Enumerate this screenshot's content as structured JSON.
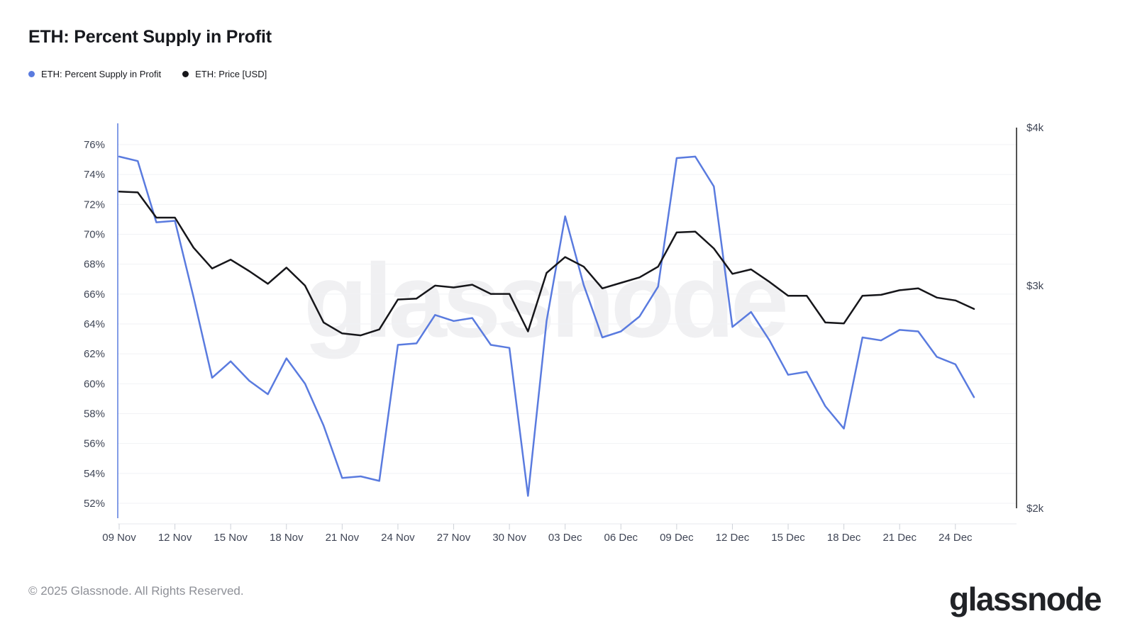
{
  "title": "ETH: Percent Supply in Profit",
  "legend": {
    "items": [
      {
        "label": "ETH: Percent Supply in Profit",
        "color": "#5A7BDF"
      },
      {
        "label": "ETH: Price [USD]",
        "color": "#16161a"
      }
    ]
  },
  "watermark": "glassnode",
  "footer": {
    "copyright": "© 2025 Glassnode. All Rights Reserved.",
    "logo": "glassnode"
  },
  "chart_data": {
    "type": "line",
    "title": "ETH: Percent Supply in Profit",
    "dates": [
      "09 Nov",
      "10 Nov",
      "11 Nov",
      "12 Nov",
      "13 Nov",
      "14 Nov",
      "15 Nov",
      "16 Nov",
      "17 Nov",
      "18 Nov",
      "19 Nov",
      "20 Nov",
      "21 Nov",
      "22 Nov",
      "23 Nov",
      "24 Nov",
      "25 Nov",
      "26 Nov",
      "27 Nov",
      "28 Nov",
      "29 Nov",
      "30 Nov",
      "01 Dec",
      "02 Dec",
      "03 Dec",
      "04 Dec",
      "05 Dec",
      "06 Dec",
      "07 Dec",
      "08 Dec",
      "09 Dec",
      "10 Dec",
      "11 Dec",
      "12 Dec",
      "13 Dec",
      "14 Dec",
      "15 Dec",
      "16 Dec",
      "17 Dec",
      "18 Dec",
      "19 Dec",
      "20 Dec",
      "21 Dec",
      "22 Dec",
      "23 Dec",
      "24 Dec",
      "25 Dec"
    ],
    "x_tick_every": 3,
    "series": [
      {
        "name": "ETH: Percent Supply in Profit",
        "axis": "left",
        "color": "#5A7BDF",
        "values": [
          75.2,
          74.9,
          70.8,
          70.9,
          65.8,
          60.4,
          61.5,
          60.2,
          59.3,
          61.7,
          60.0,
          57.2,
          53.7,
          53.8,
          53.5,
          62.6,
          62.7,
          64.6,
          64.2,
          64.4,
          62.6,
          62.4,
          52.5,
          64.2,
          71.2,
          66.6,
          63.1,
          63.5,
          64.5,
          66.5,
          75.1,
          75.2,
          73.2,
          63.8,
          64.8,
          62.9,
          60.6,
          60.8,
          58.5,
          57.0,
          63.1,
          62.9,
          63.6,
          63.5,
          61.8,
          61.3,
          59.1
        ]
      },
      {
        "name": "ETH: Price [USD]",
        "axis": "right",
        "color": "#16161a",
        "values": [
          3560,
          3555,
          3395,
          3395,
          3215,
          3095,
          3145,
          3080,
          3010,
          3100,
          3000,
          2805,
          2750,
          2740,
          2770,
          2925,
          2930,
          3000,
          2990,
          3005,
          2955,
          2955,
          2760,
          3070,
          3160,
          3105,
          2985,
          3015,
          3045,
          3105,
          3305,
          3310,
          3210,
          3065,
          3090,
          3020,
          2945,
          2945,
          2805,
          2800,
          2945,
          2950,
          2975,
          2985,
          2935,
          2920,
          2875
        ]
      }
    ],
    "left_axis": {
      "ticks": [
        76,
        74,
        72,
        70,
        68,
        66,
        64,
        62,
        60,
        58,
        56,
        54,
        52
      ],
      "tick_labels": [
        "76%",
        "74%",
        "72%",
        "70%",
        "68%",
        "66%",
        "64%",
        "62%",
        "60%",
        "58%",
        "56%",
        "54%",
        "52%"
      ],
      "range": [
        52,
        76
      ],
      "scale": "linear",
      "grid": true
    },
    "right_axis": {
      "ticks": [
        4000,
        3000,
        2000
      ],
      "tick_labels": [
        "$4k",
        "$3k",
        "$2k"
      ],
      "range": [
        2000,
        4000
      ],
      "scale": "log",
      "grid": false
    },
    "legend_position": "top-left"
  }
}
